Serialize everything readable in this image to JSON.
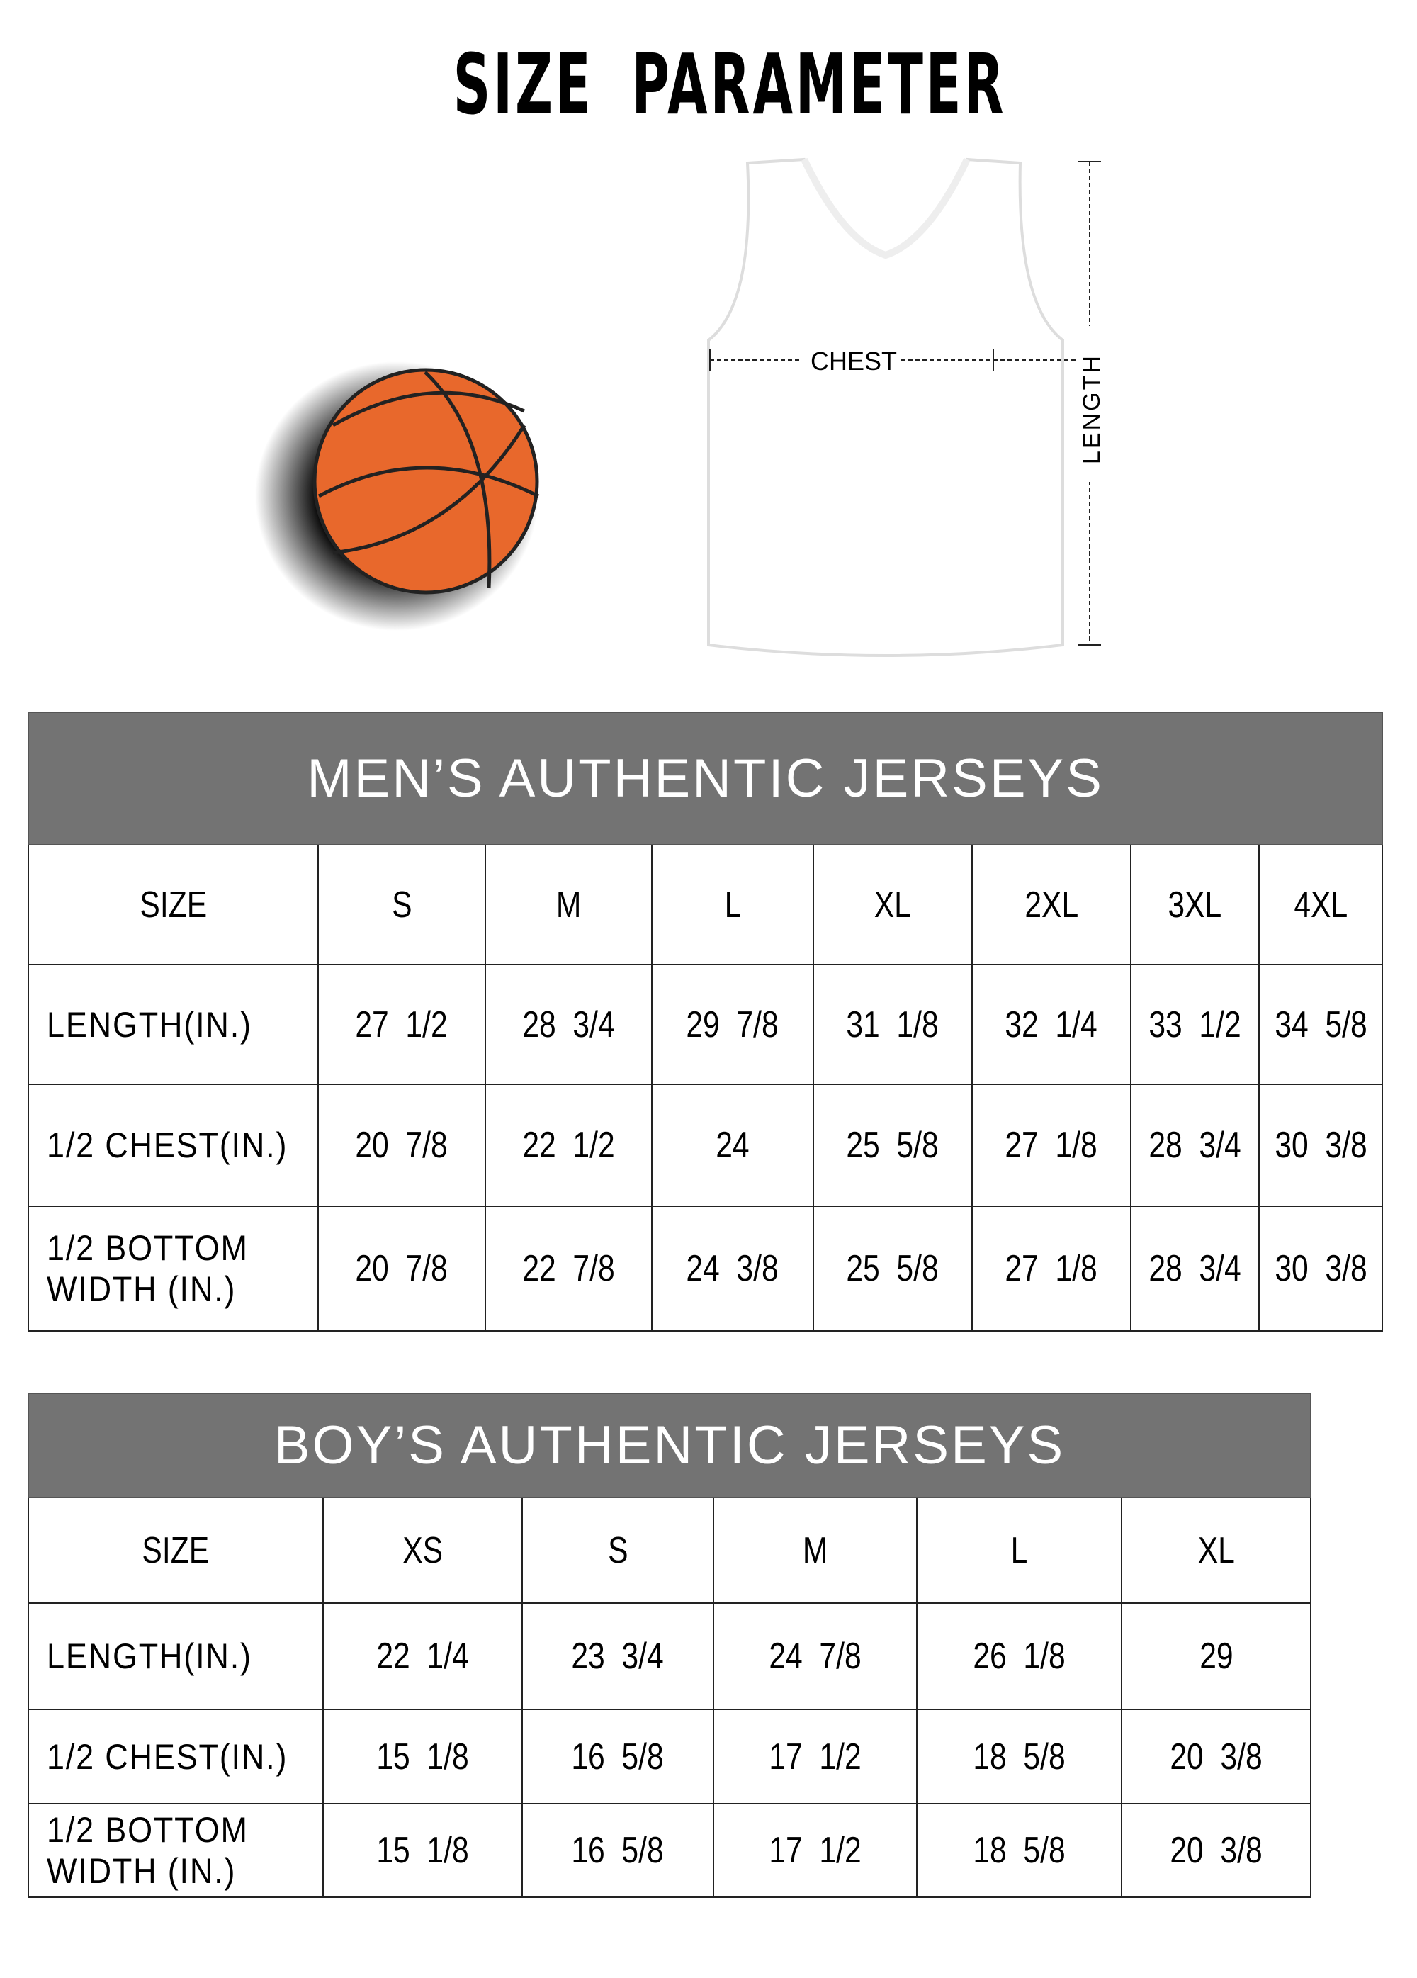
{
  "title": "SIZE PARAMETER",
  "diagram": {
    "chest_label": "CHEST",
    "length_label": "LENGTH"
  },
  "colors": {
    "header_bg": "#737373",
    "ball": "#E8682C"
  },
  "mens": {
    "title": "MEN’S AUTHENTIC JERSEYS",
    "columns": [
      "SIZE",
      "S",
      "M",
      "L",
      "XL",
      "2XL",
      "3XL",
      "4XL"
    ],
    "rows": [
      [
        "LENGTH(IN.)",
        "27  1/2",
        "28  3/4",
        "29  7/8",
        "31  1/8",
        "32  1/4",
        "33  1/2",
        "34  5/8"
      ],
      [
        "1/2 CHEST(IN.)",
        "20  7/8",
        "22  1/2",
        "24",
        "25  5/8",
        "27  1/8",
        "28  3/4",
        "30  3/8"
      ],
      [
        "1/2 BOTTOM WIDTH  (IN.)",
        "20  7/8",
        "22  7/8",
        "24  3/8",
        "25  5/8",
        "27  1/8",
        "28  3/4",
        "30  3/8"
      ]
    ]
  },
  "boys": {
    "title": "BOY’S AUTHENTIC JERSEYS",
    "columns": [
      "SIZE",
      "XS",
      "S",
      "M",
      "L",
      "XL"
    ],
    "rows": [
      [
        "LENGTH(IN.)",
        "22  1/4",
        "23  3/4",
        "24  7/8",
        "26  1/8",
        "29"
      ],
      [
        "1/2 CHEST(IN.)",
        "15  1/8",
        "16  5/8",
        "17  1/2",
        "18  5/8",
        "20  3/8"
      ],
      [
        "1/2 BOTTOM WIDTH  (IN.)",
        "15  1/8",
        "16  5/8",
        "17  1/2",
        "18  5/8",
        "20  3/8"
      ]
    ]
  }
}
